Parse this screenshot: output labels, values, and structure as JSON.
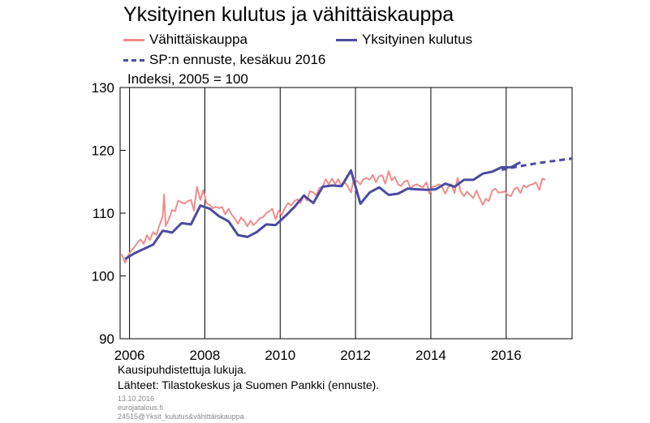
{
  "chart_data": {
    "type": "line",
    "title": "Yksityinen kulutus ja vähittäiskauppa",
    "unit_label": "Indeksi, 2005 = 100",
    "ylim": [
      90,
      130
    ],
    "yticks": [
      90,
      100,
      110,
      120,
      130
    ],
    "xlim": [
      2005.75,
      2017.75
    ],
    "xticks": [
      2006,
      2008,
      2010,
      2012,
      2014,
      2016
    ],
    "xtick_labels": [
      "2006",
      "2008",
      "2010",
      "2012",
      "2014",
      "2016"
    ],
    "grid": "vertical",
    "legend_position": "top",
    "series": [
      {
        "name": "Vähittäiskauppa",
        "color": "#f08c8c",
        "style": "solid",
        "x": [
          2005.79,
          2005.88,
          2005.96,
          2006.04,
          2006.13,
          2006.21,
          2006.29,
          2006.38,
          2006.46,
          2006.54,
          2006.63,
          2006.71,
          2006.79,
          2006.88,
          2006.92,
          2006.96,
          2007.04,
          2007.13,
          2007.21,
          2007.29,
          2007.38,
          2007.46,
          2007.54,
          2007.63,
          2007.71,
          2007.79,
          2007.88,
          2007.96,
          2008.04,
          2008.13,
          2008.21,
          2008.29,
          2008.38,
          2008.46,
          2008.54,
          2008.63,
          2008.71,
          2008.79,
          2008.88,
          2008.96,
          2009.04,
          2009.13,
          2009.21,
          2009.29,
          2009.38,
          2009.46,
          2009.54,
          2009.63,
          2009.71,
          2009.79,
          2009.88,
          2009.96,
          2010.04,
          2010.13,
          2010.21,
          2010.29,
          2010.38,
          2010.46,
          2010.54,
          2010.63,
          2010.71,
          2010.79,
          2010.88,
          2010.96,
          2011.04,
          2011.13,
          2011.21,
          2011.29,
          2011.38,
          2011.46,
          2011.54,
          2011.63,
          2011.71,
          2011.79,
          2011.88,
          2011.96,
          2012.04,
          2012.13,
          2012.21,
          2012.29,
          2012.38,
          2012.46,
          2012.54,
          2012.63,
          2012.71,
          2012.79,
          2012.88,
          2012.96,
          2013.04,
          2013.13,
          2013.21,
          2013.29,
          2013.38,
          2013.46,
          2013.54,
          2013.63,
          2013.71,
          2013.79,
          2013.88,
          2013.96,
          2014.04,
          2014.13,
          2014.21,
          2014.29,
          2014.38,
          2014.46,
          2014.54,
          2014.63,
          2014.71,
          2014.79,
          2014.88,
          2014.96,
          2015.04,
          2015.13,
          2015.21,
          2015.29,
          2015.38,
          2015.46,
          2015.54,
          2015.63,
          2015.71,
          2015.79,
          2015.88,
          2015.96,
          2016.04,
          2016.13,
          2016.21,
          2016.29,
          2016.38,
          2016.46,
          2016.54
        ],
        "values": [
          103.5,
          102.1,
          103.2,
          104.0,
          104.6,
          105.3,
          105.8,
          105.1,
          106.5,
          105.7,
          107.0,
          106.5,
          108.0,
          109.5,
          113.0,
          107.9,
          109.0,
          110.5,
          110.3,
          112.0,
          111.7,
          111.5,
          111.9,
          112.1,
          110.4,
          114.2,
          112.1,
          113.7,
          111.6,
          111.3,
          110.8,
          111.0,
          110.8,
          111.0,
          109.8,
          110.7,
          109.8,
          109.2,
          108.3,
          109.3,
          108.8,
          107.9,
          108.8,
          108.1,
          108.6,
          109.2,
          109.3,
          110.0,
          110.3,
          110.7,
          109.0,
          110.4,
          109.7,
          110.9,
          111.6,
          111.2,
          111.9,
          112.2,
          111.6,
          112.8,
          112.0,
          113.5,
          113.3,
          112.8,
          114.0,
          114.2,
          115.4,
          114.6,
          115.5,
          114.6,
          115.4,
          114.4,
          114.9,
          114.3,
          113.3,
          115.6,
          115.1,
          114.6,
          115.4,
          115.6,
          115.3,
          116.1,
          114.9,
          115.9,
          116.0,
          114.7,
          116.7,
          115.2,
          115.8,
          114.6,
          114.3,
          115.0,
          115.2,
          113.9,
          114.4,
          114.6,
          114.3,
          114.1,
          114.9,
          113.1,
          114.2,
          114.3,
          114.6,
          114.3,
          113.1,
          114.1,
          114.6,
          113.2,
          115.6,
          113.5,
          112.7,
          113.4,
          112.9,
          112.4,
          113.6,
          112.5,
          111.3,
          112.3,
          111.9,
          113.6,
          113.9,
          113.3,
          113.3,
          113.5,
          112.9,
          112.7,
          113.8,
          114.1,
          113.2,
          114.4,
          114.1
        ],
        "x_tail": [
          2016.63,
          2016.71,
          2016.79,
          2016.88,
          2016.96,
          2017.04
        ],
        "values_tail": [
          114.5,
          114.6,
          114.9,
          113.7,
          115.5,
          115.3
        ]
      },
      {
        "name": "Yksityinen kulutus",
        "color": "#4b4b9f",
        "style": "solid",
        "x": [
          2005.88,
          2006.13,
          2006.38,
          2006.63,
          2006.88,
          2007.13,
          2007.38,
          2007.63,
          2007.88,
          2008.13,
          2008.38,
          2008.63,
          2008.88,
          2009.13,
          2009.38,
          2009.63,
          2009.88,
          2010.13,
          2010.38,
          2010.63,
          2010.88,
          2011.13,
          2011.38,
          2011.63,
          2011.88,
          2012.13,
          2012.38,
          2012.63,
          2012.88,
          2013.13,
          2013.38,
          2013.63,
          2013.88,
          2014.13,
          2014.38,
          2014.63,
          2014.88,
          2015.13,
          2015.38,
          2015.63,
          2015.88,
          2016.13,
          2016.38
        ],
        "values": [
          102.7,
          103.6,
          104.3,
          105.0,
          107.2,
          106.9,
          108.4,
          108.2,
          111.2,
          110.7,
          109.5,
          108.7,
          106.5,
          106.2,
          107.0,
          108.2,
          108.1,
          109.5,
          111.0,
          112.8,
          111.6,
          114.2,
          114.4,
          114.3,
          116.8,
          111.5,
          113.3,
          114.1,
          112.9,
          113.1,
          113.9,
          113.8,
          113.7,
          113.8,
          114.7,
          114.2,
          115.3,
          115.3,
          116.3,
          116.6,
          117.3,
          117.3,
          118.1
        ],
        "x_tail": [],
        "values_tail": []
      },
      {
        "name": "SP:n ennuste, kesäkuu 2016",
        "color": "#4b4b9f",
        "style": "dashed",
        "x": [
          2015.88,
          2016.38,
          2016.88,
          2017.38,
          2017.75
        ],
        "values": [
          116.9,
          117.5,
          118.0,
          118.4,
          118.7
        ],
        "x_tail": [],
        "values_tail": []
      }
    ]
  },
  "footnotes": {
    "line1": "Kausipuhdistettuja lukuja.",
    "line2": "Lähteet: Tilastokeskus ja Suomen Pankki (ennuste).",
    "date": "13.10.2016",
    "site": "eurojatalous.fi",
    "code": "24515@Yksit_kulutus&vähittäiskauppa"
  }
}
